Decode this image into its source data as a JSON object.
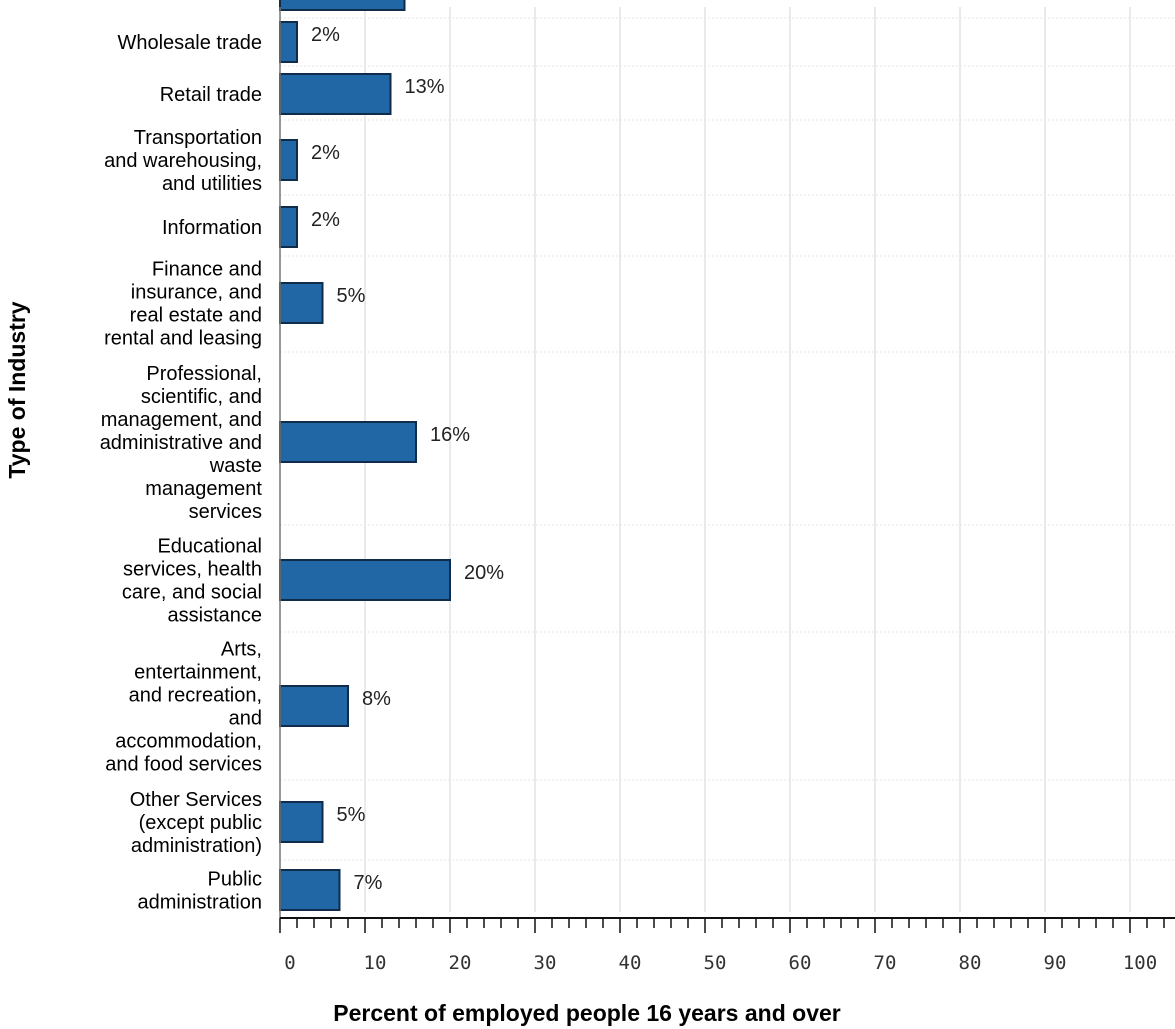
{
  "chart_data": {
    "type": "bar",
    "orientation": "horizontal",
    "xlabel": "Percent of employed people 16 years and over",
    "ylabel": "Type of Industry",
    "xlim": [
      0,
      100
    ],
    "x_ticks": [
      "0",
      "10",
      "20",
      "30",
      "40",
      "50",
      "60",
      "70",
      "80",
      "90",
      "100"
    ],
    "bar_color": "#2167a6",
    "grid": true,
    "categories": [
      {
        "lines": [
          "Wholesale trade"
        ],
        "value": 2,
        "label": "2%"
      },
      {
        "lines": [
          "Retail trade"
        ],
        "value": 13,
        "label": "13%"
      },
      {
        "lines": [
          "Transportation",
          "and warehousing,",
          "and utilities"
        ],
        "value": 2,
        "label": "2%"
      },
      {
        "lines": [
          "Information"
        ],
        "value": 2,
        "label": "2%"
      },
      {
        "lines": [
          "Finance and",
          "insurance, and",
          "real estate and",
          "rental and leasing"
        ],
        "value": 5,
        "label": "5%"
      },
      {
        "lines": [
          "Professional,",
          "scientific, and",
          "management, and",
          "administrative and",
          "waste",
          "management",
          "services"
        ],
        "value": 16,
        "label": "16%"
      },
      {
        "lines": [
          "Educational",
          "services, health",
          "care, and social",
          "assistance"
        ],
        "value": 20,
        "label": "20%"
      },
      {
        "lines": [
          "Arts,",
          "entertainment,",
          "and recreation,",
          "and",
          "accommodation,",
          "and food services"
        ],
        "value": 8,
        "label": "8%"
      },
      {
        "lines": [
          "Other Services",
          "(except public",
          "administration)"
        ],
        "value": 5,
        "label": "5%"
      },
      {
        "lines": [
          "Public",
          "administration"
        ],
        "value": 7,
        "label": "7%"
      }
    ],
    "partial_top_bar_value": 15
  }
}
